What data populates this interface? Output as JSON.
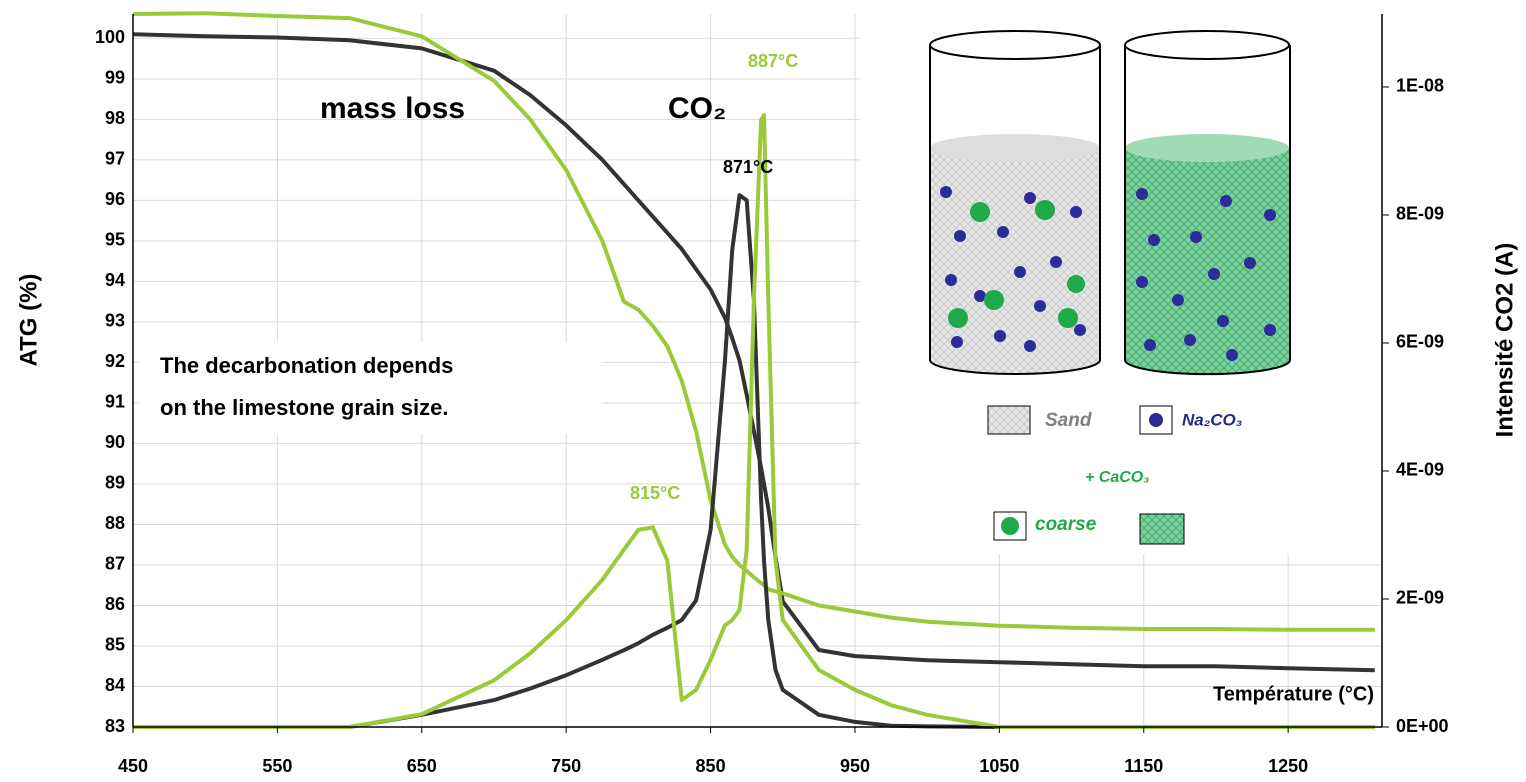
{
  "chart_data": {
    "type": "line",
    "x_label": "Température (°C)",
    "y_label": "ATG (%)",
    "y2_label": "Intensité CO2 (A)",
    "x": [
      450,
      500,
      550,
      600,
      650,
      700,
      725,
      750,
      775,
      790,
      800,
      810,
      820,
      830,
      840,
      850,
      860,
      865,
      870,
      875,
      880,
      885,
      887,
      890,
      895,
      900,
      925,
      950,
      975,
      1000,
      1050,
      1100,
      1150,
      1200,
      1250,
      1310
    ],
    "xlim": [
      450,
      1315
    ],
    "xticks": [
      450,
      550,
      650,
      750,
      850,
      950,
      1050,
      1150,
      1250
    ],
    "ylim": [
      83,
      100.6
    ],
    "yticks": [
      83,
      84,
      85,
      86,
      87,
      88,
      89,
      90,
      91,
      92,
      93,
      94,
      95,
      96,
      97,
      98,
      99,
      100
    ],
    "y2lim": [
      0,
      1.114e-08
    ],
    "y2ticks": [
      {
        "value": 0,
        "label": "0E+00"
      },
      {
        "value": 2e-09,
        "label": "2E-09"
      },
      {
        "value": 4e-09,
        "label": "4E-09"
      },
      {
        "value": 6e-09,
        "label": "6E-09"
      },
      {
        "value": 8e-09,
        "label": "8E-09"
      },
      {
        "value": 1e-08,
        "label": "1E-08"
      }
    ],
    "grid": true,
    "series": [
      {
        "color": "#333333",
        "axis": "y",
        "values": [
          100.1,
          100.05,
          100.02,
          99.95,
          99.75,
          99.2,
          98.6,
          97.85,
          97.0,
          96.4,
          96.0,
          95.6,
          95.2,
          94.8,
          94.3,
          93.8,
          93.1,
          92.6,
          92.05,
          91.2,
          90.3,
          89.4,
          89.0,
          88.4,
          87.2,
          86.1,
          84.9,
          84.75,
          84.7,
          84.65,
          84.6,
          84.55,
          84.5,
          84.5,
          84.45,
          84.4
        ]
      },
      {
        "color": "#9cc93a",
        "axis": "y",
        "values": [
          100.6,
          100.62,
          100.55,
          100.5,
          100.05,
          98.95,
          98.0,
          96.75,
          95.0,
          93.5,
          93.3,
          92.9,
          92.4,
          91.55,
          90.3,
          88.6,
          87.5,
          87.2,
          87.0,
          86.85,
          86.7,
          86.55,
          86.5,
          86.4,
          86.35,
          86.3,
          86.0,
          85.85,
          85.7,
          85.6,
          85.5,
          85.45,
          85.42,
          85.42,
          85.4,
          85.4
        ]
      },
      {
        "color": "#333333",
        "axis": "y2",
        "values": [
          0,
          0,
          0,
          0,
          1.9e-10,
          4.2e-10,
          6e-10,
          8.1e-10,
          1.05e-09,
          1.2e-09,
          1.31e-09,
          1.44e-09,
          1.55e-09,
          1.67e-09,
          1.98e-09,
          3.08e-09,
          5.73e-09,
          7.45e-09,
          8.31e-09,
          8.23e-09,
          6.67e-09,
          3.55e-09,
          2.6e-09,
          1.67e-09,
          8.9e-10,
          5.8e-10,
          1.9e-10,
          8e-11,
          2e-11,
          1e-11,
          0,
          0,
          0,
          0,
          0,
          0
        ]
      },
      {
        "color": "#9cc93a",
        "axis": "y2",
        "values": [
          0,
          0,
          0,
          0,
          2e-10,
          7.3e-10,
          1.15e-09,
          1.67e-09,
          2.3e-09,
          2.77e-09,
          3.08e-09,
          3.12e-09,
          2.6e-09,
          4.2e-10,
          5.8e-10,
          1.05e-09,
          1.59e-09,
          1.67e-09,
          1.83e-09,
          2.77e-09,
          6.67e-09,
          9.48e-09,
          9.56e-09,
          6.67e-09,
          2.6e-09,
          1.67e-09,
          8.9e-10,
          5.8e-10,
          3.4e-10,
          1.9e-10,
          0,
          0,
          0,
          0,
          0,
          0
        ]
      }
    ],
    "annotations": [
      "mass loss",
      "CO₂",
      "887°C",
      "871°C",
      "815°C"
    ],
    "note": [
      "The decarbonation depends",
      "on the limestone grain size."
    ],
    "inset_labels": [
      "Sand",
      "Na₂CO₃",
      "+ CaCO₃",
      "coarse"
    ]
  }
}
